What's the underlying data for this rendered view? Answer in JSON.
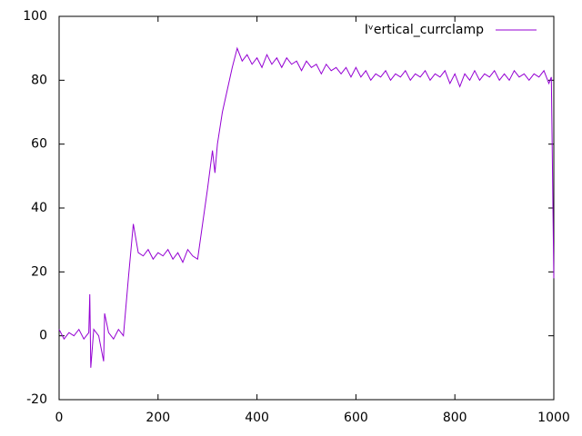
{
  "chart_data": {
    "type": "line",
    "x": [
      0,
      10,
      20,
      30,
      40,
      50,
      60,
      62,
      64,
      70,
      80,
      90,
      92,
      100,
      110,
      120,
      130,
      140,
      150,
      160,
      170,
      180,
      190,
      200,
      210,
      220,
      230,
      240,
      250,
      260,
      270,
      280,
      290,
      300,
      310,
      315,
      320,
      330,
      340,
      350,
      360,
      370,
      380,
      390,
      400,
      410,
      420,
      430,
      440,
      450,
      460,
      470,
      480,
      490,
      500,
      510,
      520,
      530,
      540,
      550,
      560,
      570,
      580,
      590,
      600,
      610,
      620,
      630,
      640,
      650,
      660,
      670,
      680,
      690,
      700,
      710,
      720,
      730,
      740,
      750,
      760,
      770,
      780,
      790,
      800,
      810,
      820,
      830,
      840,
      850,
      860,
      870,
      880,
      890,
      900,
      910,
      920,
      930,
      940,
      950,
      960,
      970,
      980,
      990,
      995,
      1000
    ],
    "series": [
      {
        "name": "Iᵛertical_currclamp",
        "color": "#9400d3",
        "values": [
          2,
          -1,
          1,
          0,
          2,
          -1,
          1,
          13,
          -10,
          2,
          0,
          -8,
          7,
          1,
          -1,
          2,
          0,
          18,
          35,
          26,
          25,
          27,
          24,
          26,
          25,
          27,
          24,
          26,
          23,
          27,
          25,
          24,
          35,
          46,
          58,
          51,
          60,
          70,
          77,
          84,
          90,
          86,
          88,
          85,
          87,
          84,
          88,
          85,
          87,
          84,
          87,
          85,
          86,
          83,
          86,
          84,
          85,
          82,
          85,
          83,
          84,
          82,
          84,
          81,
          84,
          81,
          83,
          80,
          82,
          81,
          83,
          80,
          82,
          81,
          83,
          80,
          82,
          81,
          83,
          80,
          82,
          81,
          83,
          79,
          82,
          78,
          82,
          80,
          83,
          80,
          82,
          81,
          83,
          80,
          82,
          80,
          83,
          81,
          82,
          80,
          82,
          81,
          83,
          79,
          81,
          18
        ]
      }
    ],
    "xlim": [
      0,
      1000
    ],
    "ylim": [
      -20,
      100
    ],
    "xticks": [
      0,
      200,
      400,
      600,
      800,
      1000
    ],
    "yticks": [
      -20,
      0,
      20,
      40,
      60,
      80,
      100
    ],
    "legend": "top-right"
  }
}
